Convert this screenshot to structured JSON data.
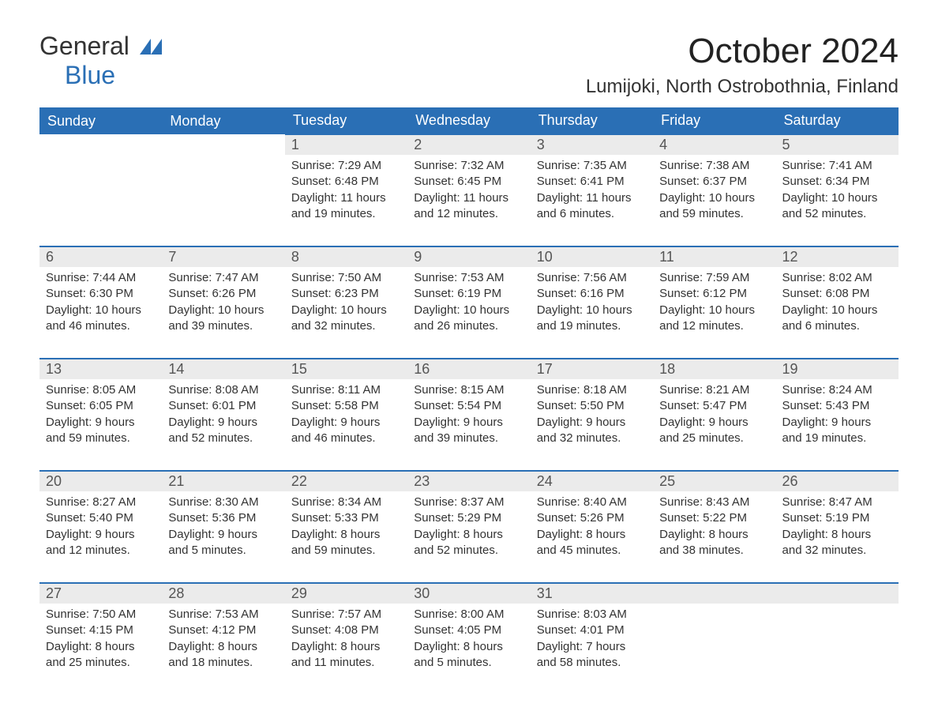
{
  "brand": {
    "general": "General",
    "blue": "Blue"
  },
  "title": "October 2024",
  "location": "Lumijoki, North Ostrobothnia, Finland",
  "colors": {
    "header_bg": "#2a6fb5",
    "header_text": "#ffffff",
    "daynum_bg": "#ebebeb",
    "border_top": "#2a6fb5",
    "body_text": "#333333",
    "page_bg": "#ffffff"
  },
  "day_headers": [
    "Sunday",
    "Monday",
    "Tuesday",
    "Wednesday",
    "Thursday",
    "Friday",
    "Saturday"
  ],
  "weeks": [
    [
      null,
      null,
      {
        "n": "1",
        "sunrise": "Sunrise: 7:29 AM",
        "sunset": "Sunset: 6:48 PM",
        "d1": "Daylight: 11 hours",
        "d2": "and 19 minutes."
      },
      {
        "n": "2",
        "sunrise": "Sunrise: 7:32 AM",
        "sunset": "Sunset: 6:45 PM",
        "d1": "Daylight: 11 hours",
        "d2": "and 12 minutes."
      },
      {
        "n": "3",
        "sunrise": "Sunrise: 7:35 AM",
        "sunset": "Sunset: 6:41 PM",
        "d1": "Daylight: 11 hours",
        "d2": "and 6 minutes."
      },
      {
        "n": "4",
        "sunrise": "Sunrise: 7:38 AM",
        "sunset": "Sunset: 6:37 PM",
        "d1": "Daylight: 10 hours",
        "d2": "and 59 minutes."
      },
      {
        "n": "5",
        "sunrise": "Sunrise: 7:41 AM",
        "sunset": "Sunset: 6:34 PM",
        "d1": "Daylight: 10 hours",
        "d2": "and 52 minutes."
      }
    ],
    [
      {
        "n": "6",
        "sunrise": "Sunrise: 7:44 AM",
        "sunset": "Sunset: 6:30 PM",
        "d1": "Daylight: 10 hours",
        "d2": "and 46 minutes."
      },
      {
        "n": "7",
        "sunrise": "Sunrise: 7:47 AM",
        "sunset": "Sunset: 6:26 PM",
        "d1": "Daylight: 10 hours",
        "d2": "and 39 minutes."
      },
      {
        "n": "8",
        "sunrise": "Sunrise: 7:50 AM",
        "sunset": "Sunset: 6:23 PM",
        "d1": "Daylight: 10 hours",
        "d2": "and 32 minutes."
      },
      {
        "n": "9",
        "sunrise": "Sunrise: 7:53 AM",
        "sunset": "Sunset: 6:19 PM",
        "d1": "Daylight: 10 hours",
        "d2": "and 26 minutes."
      },
      {
        "n": "10",
        "sunrise": "Sunrise: 7:56 AM",
        "sunset": "Sunset: 6:16 PM",
        "d1": "Daylight: 10 hours",
        "d2": "and 19 minutes."
      },
      {
        "n": "11",
        "sunrise": "Sunrise: 7:59 AM",
        "sunset": "Sunset: 6:12 PM",
        "d1": "Daylight: 10 hours",
        "d2": "and 12 minutes."
      },
      {
        "n": "12",
        "sunrise": "Sunrise: 8:02 AM",
        "sunset": "Sunset: 6:08 PM",
        "d1": "Daylight: 10 hours",
        "d2": "and 6 minutes."
      }
    ],
    [
      {
        "n": "13",
        "sunrise": "Sunrise: 8:05 AM",
        "sunset": "Sunset: 6:05 PM",
        "d1": "Daylight: 9 hours",
        "d2": "and 59 minutes."
      },
      {
        "n": "14",
        "sunrise": "Sunrise: 8:08 AM",
        "sunset": "Sunset: 6:01 PM",
        "d1": "Daylight: 9 hours",
        "d2": "and 52 minutes."
      },
      {
        "n": "15",
        "sunrise": "Sunrise: 8:11 AM",
        "sunset": "Sunset: 5:58 PM",
        "d1": "Daylight: 9 hours",
        "d2": "and 46 minutes."
      },
      {
        "n": "16",
        "sunrise": "Sunrise: 8:15 AM",
        "sunset": "Sunset: 5:54 PM",
        "d1": "Daylight: 9 hours",
        "d2": "and 39 minutes."
      },
      {
        "n": "17",
        "sunrise": "Sunrise: 8:18 AM",
        "sunset": "Sunset: 5:50 PM",
        "d1": "Daylight: 9 hours",
        "d2": "and 32 minutes."
      },
      {
        "n": "18",
        "sunrise": "Sunrise: 8:21 AM",
        "sunset": "Sunset: 5:47 PM",
        "d1": "Daylight: 9 hours",
        "d2": "and 25 minutes."
      },
      {
        "n": "19",
        "sunrise": "Sunrise: 8:24 AM",
        "sunset": "Sunset: 5:43 PM",
        "d1": "Daylight: 9 hours",
        "d2": "and 19 minutes."
      }
    ],
    [
      {
        "n": "20",
        "sunrise": "Sunrise: 8:27 AM",
        "sunset": "Sunset: 5:40 PM",
        "d1": "Daylight: 9 hours",
        "d2": "and 12 minutes."
      },
      {
        "n": "21",
        "sunrise": "Sunrise: 8:30 AM",
        "sunset": "Sunset: 5:36 PM",
        "d1": "Daylight: 9 hours",
        "d2": "and 5 minutes."
      },
      {
        "n": "22",
        "sunrise": "Sunrise: 8:34 AM",
        "sunset": "Sunset: 5:33 PM",
        "d1": "Daylight: 8 hours",
        "d2": "and 59 minutes."
      },
      {
        "n": "23",
        "sunrise": "Sunrise: 8:37 AM",
        "sunset": "Sunset: 5:29 PM",
        "d1": "Daylight: 8 hours",
        "d2": "and 52 minutes."
      },
      {
        "n": "24",
        "sunrise": "Sunrise: 8:40 AM",
        "sunset": "Sunset: 5:26 PM",
        "d1": "Daylight: 8 hours",
        "d2": "and 45 minutes."
      },
      {
        "n": "25",
        "sunrise": "Sunrise: 8:43 AM",
        "sunset": "Sunset: 5:22 PM",
        "d1": "Daylight: 8 hours",
        "d2": "and 38 minutes."
      },
      {
        "n": "26",
        "sunrise": "Sunrise: 8:47 AM",
        "sunset": "Sunset: 5:19 PM",
        "d1": "Daylight: 8 hours",
        "d2": "and 32 minutes."
      }
    ],
    [
      {
        "n": "27",
        "sunrise": "Sunrise: 7:50 AM",
        "sunset": "Sunset: 4:15 PM",
        "d1": "Daylight: 8 hours",
        "d2": "and 25 minutes."
      },
      {
        "n": "28",
        "sunrise": "Sunrise: 7:53 AM",
        "sunset": "Sunset: 4:12 PM",
        "d1": "Daylight: 8 hours",
        "d2": "and 18 minutes."
      },
      {
        "n": "29",
        "sunrise": "Sunrise: 7:57 AM",
        "sunset": "Sunset: 4:08 PM",
        "d1": "Daylight: 8 hours",
        "d2": "and 11 minutes."
      },
      {
        "n": "30",
        "sunrise": "Sunrise: 8:00 AM",
        "sunset": "Sunset: 4:05 PM",
        "d1": "Daylight: 8 hours",
        "d2": "and 5 minutes."
      },
      {
        "n": "31",
        "sunrise": "Sunrise: 8:03 AM",
        "sunset": "Sunset: 4:01 PM",
        "d1": "Daylight: 7 hours",
        "d2": "and 58 minutes."
      },
      null,
      null
    ]
  ]
}
